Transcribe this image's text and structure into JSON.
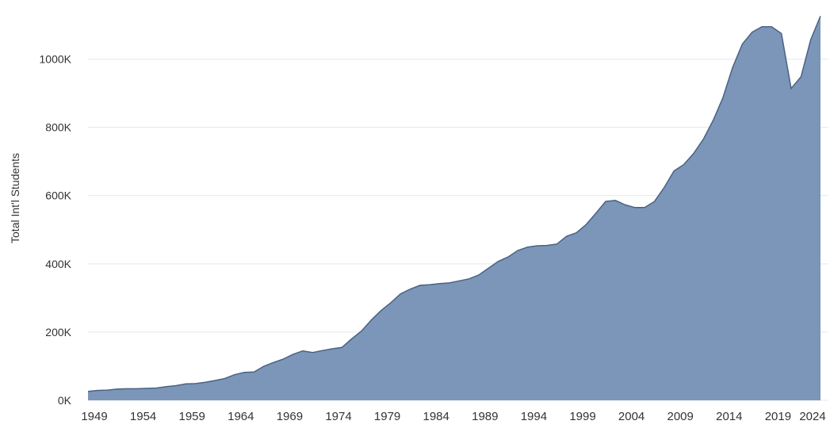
{
  "chart_data": {
    "type": "area",
    "title": "",
    "xlabel": "",
    "ylabel": "Total Int'l Students",
    "xlim": [
      1949,
      2024
    ],
    "ylim": [
      0,
      1150000
    ],
    "grid": true,
    "y_ticks": [
      {
        "value": 0,
        "label": "0K"
      },
      {
        "value": 200000,
        "label": "200K"
      },
      {
        "value": 400000,
        "label": "400K"
      },
      {
        "value": 600000,
        "label": "600K"
      },
      {
        "value": 800000,
        "label": "800K"
      },
      {
        "value": 1000000,
        "label": "1000K"
      }
    ],
    "x_ticks": [
      {
        "value": 1949,
        "label": "1949"
      },
      {
        "value": 1954,
        "label": "1954"
      },
      {
        "value": 1959,
        "label": "1959"
      },
      {
        "value": 1964,
        "label": "1964"
      },
      {
        "value": 1969,
        "label": "1969"
      },
      {
        "value": 1974,
        "label": "1974"
      },
      {
        "value": 1979,
        "label": "1979"
      },
      {
        "value": 1984,
        "label": "1984"
      },
      {
        "value": 1989,
        "label": "1989"
      },
      {
        "value": 1994,
        "label": "1994"
      },
      {
        "value": 1999,
        "label": "1999"
      },
      {
        "value": 2004,
        "label": "2004"
      },
      {
        "value": 2009,
        "label": "2009"
      },
      {
        "value": 2014,
        "label": "2014"
      },
      {
        "value": 2019,
        "label": "2019"
      },
      {
        "value": 2024,
        "label": "2024"
      }
    ],
    "fill_color": "#7b96b8",
    "line_color": "#4a6283",
    "series": [
      {
        "x": [
          1949,
          1950,
          1951,
          1952,
          1953,
          1954,
          1955,
          1956,
          1957,
          1958,
          1959,
          1960,
          1961,
          1962,
          1963,
          1964,
          1965,
          1966,
          1967,
          1968,
          1969,
          1970,
          1971,
          1972,
          1973,
          1974,
          1975,
          1976,
          1977,
          1978,
          1979,
          1980,
          1981,
          1982,
          1983,
          1984,
          1985,
          1986,
          1987,
          1988,
          1989,
          1990,
          1991,
          1992,
          1993,
          1994,
          1995,
          1996,
          1997,
          1998,
          1999,
          2000,
          2001,
          2002,
          2003,
          2004,
          2005,
          2006,
          2007,
          2008,
          2009,
          2010,
          2011,
          2012,
          2013,
          2014,
          2015,
          2016,
          2017,
          2018,
          2019,
          2020,
          2021,
          2022,
          2023,
          2024
        ],
        "values": [
          26000,
          29000,
          30000,
          33000,
          34000,
          34000,
          35000,
          36000,
          40000,
          43000,
          48000,
          49000,
          53000,
          58000,
          64000,
          75000,
          82000,
          83000,
          100000,
          111000,
          121000,
          135000,
          145000,
          140000,
          146000,
          151000,
          155000,
          180000,
          203000,
          235000,
          263000,
          286000,
          312000,
          326000,
          337000,
          339000,
          342000,
          344000,
          350000,
          356000,
          367000,
          387000,
          407000,
          420000,
          439000,
          449000,
          453000,
          454000,
          458000,
          481000,
          491000,
          515000,
          548000,
          583000,
          586000,
          573000,
          565000,
          565000,
          583000,
          624000,
          672000,
          691000,
          723000,
          765000,
          820000,
          886000,
          975000,
          1044000,
          1079000,
          1095000,
          1095000,
          1075000,
          914000,
          948000,
          1057000,
          1126000
        ]
      }
    ]
  }
}
